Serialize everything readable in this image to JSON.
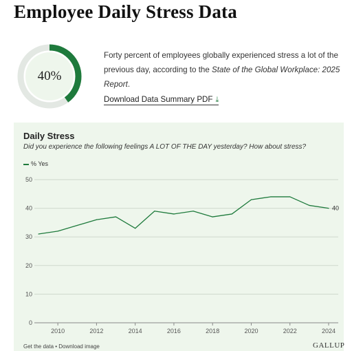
{
  "page": {
    "title": "Employee Daily Stress Data"
  },
  "stat": {
    "value": "40%",
    "fraction": 0.4,
    "colors": {
      "accent": "#1e7a3c",
      "track": "#e3e8e3",
      "inner": "#eef6ec"
    }
  },
  "intro": {
    "text_before": "Forty percent of employees globally experienced stress a lot of the previous day, according to the ",
    "report_name": "State of the Global Workplace: 2025 Report",
    "text_after": "."
  },
  "download": {
    "label": "Download Data Summary PDF",
    "icon": "download-arrow-icon"
  },
  "footer": {
    "get_data": "Get the data",
    "separator": " • ",
    "download_image": "Download image",
    "brand": "GALLUP"
  },
  "chart_data": {
    "type": "line",
    "title": "Daily Stress",
    "subtitle": "Did you experience the following feelings A LOT OF THE DAY yesterday? How about stress?",
    "xlabel": "",
    "ylabel": "",
    "x": [
      2009,
      2010,
      2011,
      2012,
      2013,
      2014,
      2015,
      2016,
      2017,
      2018,
      2019,
      2020,
      2021,
      2022,
      2023,
      2024
    ],
    "series": [
      {
        "name": "% Yes",
        "values": [
          31,
          32,
          34,
          36,
          37,
          33,
          39,
          38,
          39,
          37,
          38,
          43,
          44,
          44,
          41,
          40
        ],
        "color": "#1e7a3c"
      }
    ],
    "end_label": "40",
    "ylim": [
      0,
      50
    ],
    "yticks": [
      0,
      10,
      20,
      30,
      40,
      50
    ],
    "xlim": [
      2009,
      2024
    ],
    "xticks": [
      2010,
      2012,
      2014,
      2016,
      2018,
      2020,
      2022,
      2024
    ],
    "grid": "horizontal",
    "legend_position": "top-left",
    "colors": {
      "gridline": "#cfd8cd",
      "axis_text": "#555555"
    }
  }
}
